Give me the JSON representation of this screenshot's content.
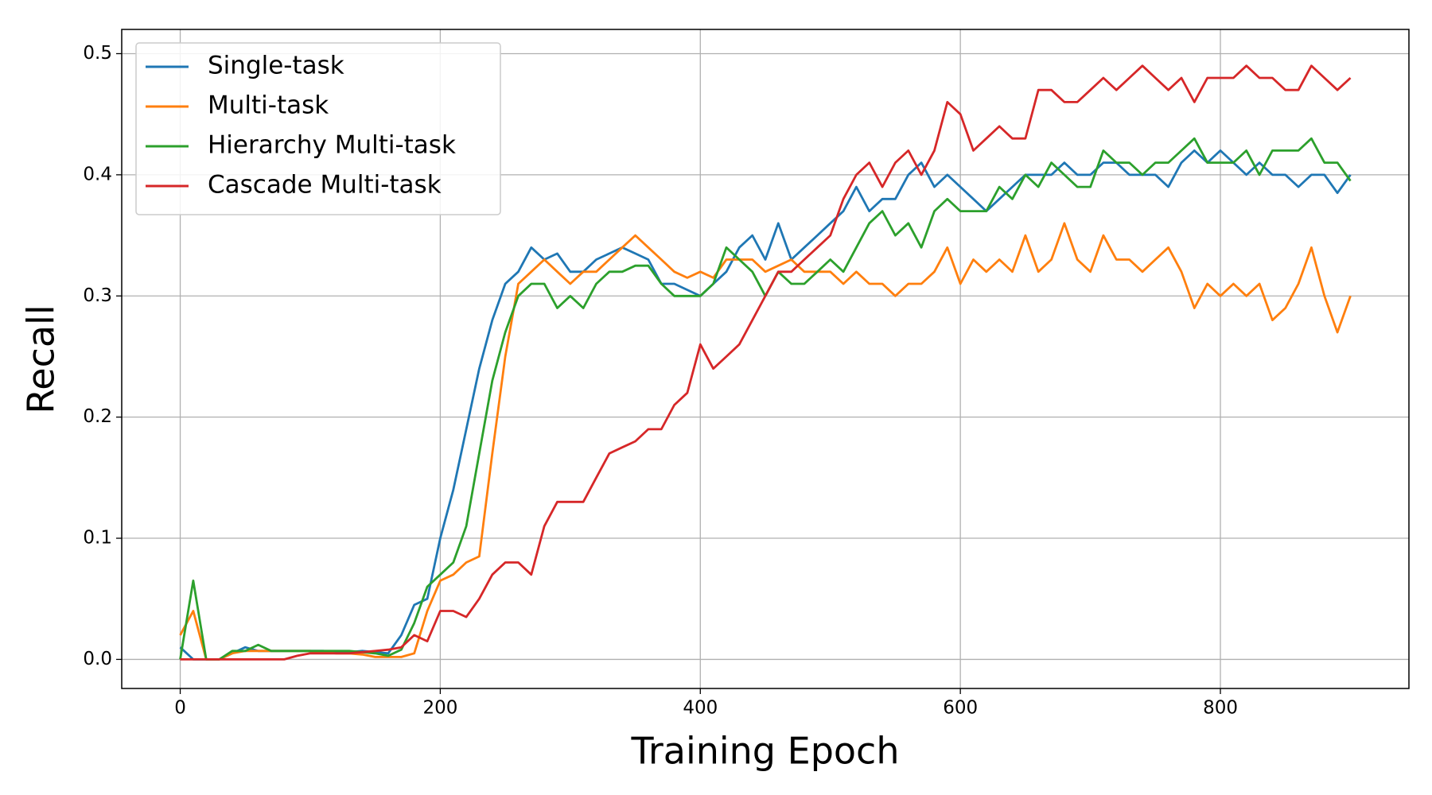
{
  "chart_data": {
    "type": "line",
    "xlabel": "Training Epoch",
    "ylabel": "Recall",
    "x": [
      0,
      10,
      20,
      30,
      40,
      50,
      60,
      70,
      80,
      90,
      100,
      110,
      120,
      130,
      140,
      150,
      160,
      170,
      180,
      190,
      200,
      210,
      220,
      230,
      240,
      250,
      260,
      270,
      280,
      290,
      300,
      310,
      320,
      330,
      340,
      350,
      360,
      370,
      380,
      390,
      400,
      410,
      420,
      430,
      440,
      450,
      460,
      470,
      480,
      490,
      500,
      510,
      520,
      530,
      540,
      550,
      560,
      570,
      580,
      590,
      600,
      610,
      620,
      630,
      640,
      650,
      660,
      670,
      680,
      690,
      700,
      710,
      720,
      730,
      740,
      750,
      760,
      770,
      780,
      790,
      800,
      810,
      820,
      830,
      840,
      850,
      860,
      870,
      880,
      890,
      900
    ],
    "series": [
      {
        "name": "Single-task",
        "color": "#1f77b4",
        "values": [
          0.01,
          0,
          0,
          0,
          0.005,
          0.01,
          0.007,
          0.007,
          0.007,
          0.007,
          0.007,
          0.007,
          0.006,
          0.006,
          0.007,
          0.006,
          0.005,
          0.02,
          0.045,
          0.05,
          0.1,
          0.14,
          0.19,
          0.24,
          0.28,
          0.31,
          0.32,
          0.34,
          0.33,
          0.335,
          0.32,
          0.32,
          0.33,
          0.335,
          0.34,
          0.335,
          0.33,
          0.31,
          0.31,
          0.305,
          0.3,
          0.31,
          0.32,
          0.34,
          0.35,
          0.33,
          0.36,
          0.33,
          0.34,
          0.35,
          0.36,
          0.37,
          0.39,
          0.37,
          0.38,
          0.38,
          0.4,
          0.41,
          0.39,
          0.4,
          0.39,
          0.38,
          0.37,
          0.38,
          0.39,
          0.4,
          0.4,
          0.4,
          0.41,
          0.4,
          0.4,
          0.41,
          0.41,
          0.4,
          0.4,
          0.4,
          0.39,
          0.41,
          0.42,
          0.41,
          0.42,
          0.41,
          0.4,
          0.41,
          0.4,
          0.4,
          0.39,
          0.4,
          0.4,
          0.385,
          0.4
        ]
      },
      {
        "name": "Multi-task",
        "color": "#ff7f0e",
        "values": [
          0.02,
          0.04,
          0,
          0,
          0.005,
          0.007,
          0.007,
          0.007,
          0.007,
          0.007,
          0.007,
          0.006,
          0.005,
          0.005,
          0.004,
          0.002,
          0.002,
          0.002,
          0.005,
          0.04,
          0.065,
          0.07,
          0.08,
          0.085,
          0.17,
          0.25,
          0.31,
          0.32,
          0.33,
          0.32,
          0.31,
          0.32,
          0.32,
          0.33,
          0.34,
          0.35,
          0.34,
          0.33,
          0.32,
          0.315,
          0.32,
          0.315,
          0.33,
          0.33,
          0.33,
          0.32,
          0.325,
          0.33,
          0.32,
          0.32,
          0.32,
          0.31,
          0.32,
          0.31,
          0.31,
          0.3,
          0.31,
          0.31,
          0.32,
          0.34,
          0.31,
          0.33,
          0.32,
          0.33,
          0.32,
          0.35,
          0.32,
          0.33,
          0.36,
          0.33,
          0.32,
          0.35,
          0.33,
          0.33,
          0.32,
          0.33,
          0.34,
          0.32,
          0.29,
          0.31,
          0.3,
          0.31,
          0.3,
          0.31,
          0.28,
          0.29,
          0.31,
          0.34,
          0.3,
          0.27,
          0.3
        ]
      },
      {
        "name": "Hierarchy Multi-task",
        "color": "#2ca02c",
        "values": [
          0,
          0.065,
          0,
          0,
          0.007,
          0.007,
          0.012,
          0.007,
          0.007,
          0.007,
          0.007,
          0.007,
          0.007,
          0.007,
          0.006,
          0.005,
          0.003,
          0.008,
          0.03,
          0.06,
          0.07,
          0.08,
          0.11,
          0.17,
          0.23,
          0.27,
          0.3,
          0.31,
          0.31,
          0.29,
          0.3,
          0.29,
          0.31,
          0.32,
          0.32,
          0.325,
          0.325,
          0.31,
          0.3,
          0.3,
          0.3,
          0.31,
          0.34,
          0.33,
          0.32,
          0.3,
          0.32,
          0.31,
          0.31,
          0.32,
          0.33,
          0.32,
          0.34,
          0.36,
          0.37,
          0.35,
          0.36,
          0.34,
          0.37,
          0.38,
          0.37,
          0.37,
          0.37,
          0.39,
          0.38,
          0.4,
          0.39,
          0.41,
          0.4,
          0.39,
          0.39,
          0.42,
          0.41,
          0.41,
          0.4,
          0.41,
          0.41,
          0.42,
          0.43,
          0.41,
          0.41,
          0.41,
          0.42,
          0.4,
          0.42,
          0.42,
          0.42,
          0.43,
          0.41,
          0.41,
          0.395
        ]
      },
      {
        "name": "Cascade Multi-task",
        "color": "#d62728",
        "values": [
          0,
          0,
          0,
          0,
          0,
          0,
          0,
          0,
          0,
          0.003,
          0.005,
          0.005,
          0.005,
          0.005,
          0.006,
          0.007,
          0.008,
          0.01,
          0.02,
          0.015,
          0.04,
          0.04,
          0.035,
          0.05,
          0.07,
          0.08,
          0.08,
          0.07,
          0.11,
          0.13,
          0.13,
          0.13,
          0.15,
          0.17,
          0.175,
          0.18,
          0.19,
          0.19,
          0.21,
          0.22,
          0.26,
          0.24,
          0.25,
          0.26,
          0.28,
          0.3,
          0.32,
          0.32,
          0.33,
          0.34,
          0.35,
          0.38,
          0.4,
          0.41,
          0.39,
          0.41,
          0.42,
          0.4,
          0.42,
          0.46,
          0.45,
          0.42,
          0.43,
          0.44,
          0.43,
          0.43,
          0.47,
          0.47,
          0.46,
          0.46,
          0.47,
          0.48,
          0.47,
          0.48,
          0.49,
          0.48,
          0.47,
          0.48,
          0.46,
          0.48,
          0.48,
          0.48,
          0.49,
          0.48,
          0.48,
          0.47,
          0.47,
          0.49,
          0.48,
          0.47,
          0.48
        ]
      }
    ],
    "xlim": [
      -45,
      945
    ],
    "xticks": [
      0,
      200,
      400,
      600,
      800
    ],
    "ylim": [
      -0.024,
      0.52
    ],
    "yticks": [
      {
        "value": 0,
        "label": "0.0"
      },
      0.1,
      0.2,
      0.3,
      0.4,
      0.5
    ],
    "grid": true,
    "legend": "upper left"
  }
}
